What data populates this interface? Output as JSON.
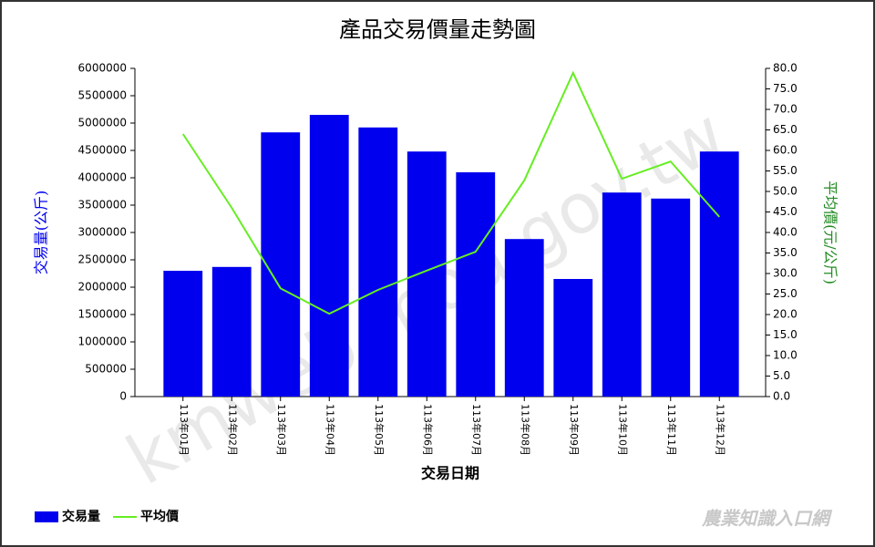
{
  "chart_data": {
    "type": "bar-line",
    "title": "產品交易價量走勢圖",
    "x_label": "交易日期",
    "y_label": "交易量(公斤)",
    "y2_label": "平均價(元/公斤)",
    "categories": [
      "113年01月",
      "113年02月",
      "113年03月",
      "113年04月",
      "113年05月",
      "113年06月",
      "113年07月",
      "113年08月",
      "113年09月",
      "113年10月",
      "113年11月",
      "113年12月"
    ],
    "series": [
      {
        "name": "交易量",
        "color": "#0000ee",
        "type": "bar",
        "axis": "y",
        "values": [
          2300000,
          2370000,
          4830000,
          5150000,
          4920000,
          4480000,
          4100000,
          2880000,
          2150000,
          3730000,
          3620000,
          4480000
        ]
      },
      {
        "name": "平均價",
        "color": "#66ee22",
        "type": "line",
        "axis": "y2",
        "values": [
          64.0,
          46.0,
          26.4,
          20.2,
          26.0,
          30.7,
          35.3,
          52.7,
          78.9,
          53.1,
          57.3,
          43.8
        ]
      }
    ],
    "ylim": [
      0,
      6000000
    ],
    "yticks": [
      0,
      500000,
      1000000,
      1500000,
      2000000,
      2500000,
      3000000,
      3500000,
      4000000,
      4500000,
      5000000,
      5500000,
      6000000
    ],
    "y2lim": [
      0,
      80
    ],
    "y2ticks": [
      {
        "value": 0,
        "label": "0.0"
      },
      {
        "value": 5,
        "label": "5.0"
      },
      {
        "value": 10,
        "label": "10.0"
      },
      {
        "value": 15,
        "label": "15.0"
      },
      {
        "value": 20,
        "label": "20.0"
      },
      {
        "value": 25,
        "label": "25.0"
      },
      {
        "value": 30,
        "label": "30.0"
      },
      {
        "value": 35,
        "label": "35.0"
      },
      {
        "value": 40,
        "label": "40.0"
      },
      {
        "value": 45,
        "label": "45.0"
      },
      {
        "value": 50,
        "label": "50.0"
      },
      {
        "value": 55,
        "label": "55.0"
      },
      {
        "value": 60,
        "label": "60.0"
      },
      {
        "value": 65,
        "label": "65.0"
      },
      {
        "value": 70,
        "label": "70.0"
      },
      {
        "value": 75,
        "label": "75.0"
      },
      {
        "value": 80,
        "label": "80.0"
      }
    ],
    "legend": "bottom-left",
    "watermark": "kmweb.moa.gov.tw",
    "logo": "農業知識入口網"
  }
}
